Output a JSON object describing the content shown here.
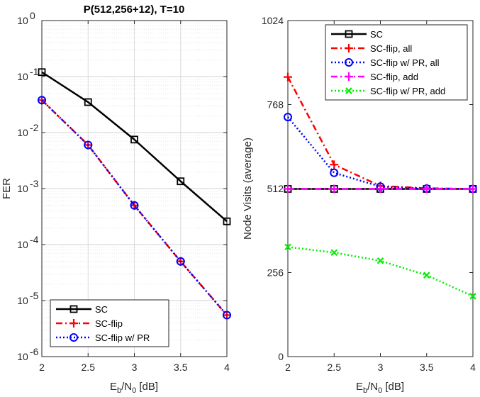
{
  "chart_data": [
    {
      "type": "line",
      "title": "P(512,256+12), T=10",
      "xlabel": "E_b/N_0 [dB]",
      "ylabel": "FER",
      "yscale": "log",
      "xlim": [
        2,
        4
      ],
      "ylim": [
        1e-06,
        1
      ],
      "xticks": [
        2,
        2.5,
        3,
        3.5,
        4
      ],
      "xtick_labels": [
        "2",
        "2.5",
        "3",
        "3.5",
        "4"
      ],
      "yticks": [
        1e-06,
        1e-05,
        0.0001,
        0.001,
        0.01,
        0.1,
        1
      ],
      "ytick_labels": [
        {
          "base": "10",
          "exp": "-6"
        },
        {
          "base": "10",
          "exp": "-5"
        },
        {
          "base": "10",
          "exp": "-4"
        },
        {
          "base": "10",
          "exp": "-3"
        },
        {
          "base": "10",
          "exp": "-2"
        },
        {
          "base": "10",
          "exp": "-1"
        },
        {
          "base": "10",
          "exp": "0"
        }
      ],
      "grid": true,
      "legend_position": "bottom-left",
      "x": [
        2,
        2.5,
        3,
        3.5,
        4
      ],
      "series": [
        {
          "name": "SC",
          "values": [
            0.12,
            0.035,
            0.0075,
            0.00135,
            0.00026
          ],
          "color": "#000000",
          "style": "solid",
          "marker": "square"
        },
        {
          "name": "SC-flip",
          "values": [
            0.038,
            0.006,
            0.0005,
            5e-05,
            5.5e-06
          ],
          "color": "#ff0000",
          "style": "dashdot",
          "marker": "plus"
        },
        {
          "name": "SC-flip w/ PR",
          "values": [
            0.038,
            0.006,
            0.0005,
            5e-05,
            5.5e-06
          ],
          "color": "#0000ff",
          "style": "dotted",
          "marker": "circle"
        }
      ]
    },
    {
      "type": "line",
      "title": "",
      "xlabel": "E_b/N_0 [dB]",
      "ylabel": "Node Visits (average)",
      "xlim": [
        2,
        4
      ],
      "ylim": [
        0,
        1024
      ],
      "xticks": [
        2,
        2.5,
        3,
        3.5,
        4
      ],
      "xtick_labels": [
        "2",
        "2.5",
        "3",
        "3.5",
        "4"
      ],
      "yticks": [
        0,
        256,
        512,
        768,
        1024
      ],
      "ytick_labels": [
        "0",
        "256",
        "512",
        "768",
        "1024"
      ],
      "grid": false,
      "legend_position": "top-right",
      "x": [
        2,
        2.5,
        3,
        3.5,
        4
      ],
      "series": [
        {
          "name": "SC",
          "values": [
            511,
            511,
            511,
            511,
            511
          ],
          "color": "#000000",
          "style": "solid",
          "marker": "square"
        },
        {
          "name": "SC-flip, all",
          "values": [
            852,
            585,
            520,
            513,
            511
          ],
          "color": "#ff0000",
          "style": "dashdot",
          "marker": "plus"
        },
        {
          "name": "SC-flip w/ PR, all",
          "values": [
            730,
            560,
            518,
            512,
            511
          ],
          "color": "#0000ff",
          "style": "dotted",
          "marker": "circle"
        },
        {
          "name": "SC-flip, add",
          "values": [
            511,
            511,
            511,
            511,
            511
          ],
          "color": "#ff00ff",
          "style": "dashdot",
          "marker": "plus"
        },
        {
          "name": "SC-flip w/ PR, add",
          "values": [
            334,
            317,
            292,
            248,
            184
          ],
          "color": "#00ee00",
          "style": "dotted",
          "marker": "x"
        }
      ]
    }
  ]
}
